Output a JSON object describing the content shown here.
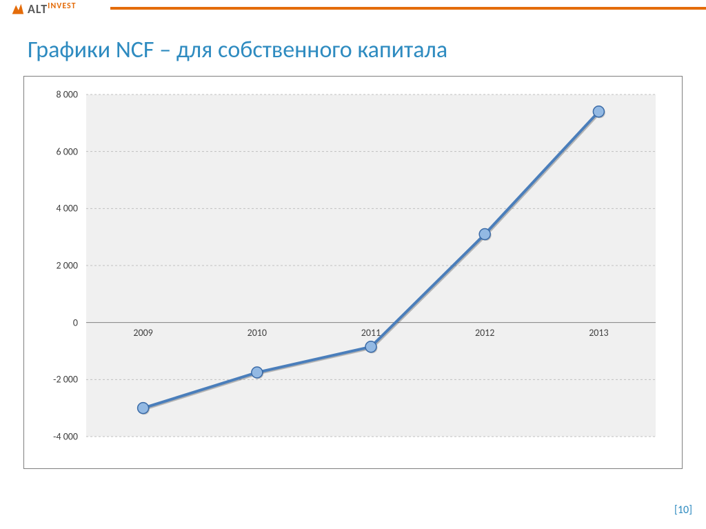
{
  "brand": {
    "name_main": "ALT",
    "name_sub": "INVEST",
    "accent_color": "#e46c0a",
    "text_color": "#5a5a5a",
    "bar_color": "#e46c0a"
  },
  "title": {
    "text": "Графики NCF – для собственного капитала",
    "color": "#2e8bc0",
    "fontsize": 34
  },
  "page_number": {
    "text": "[10]",
    "color": "#2e8bc0",
    "fontsize": 16
  },
  "chart": {
    "type": "line",
    "plot_background": "#f0f0f0",
    "outer_border_color": "#7f7f7f",
    "grid_color": "#bfbfbf",
    "axis_color": "#808080",
    "tick_font_color": "#404040",
    "tick_fontsize": 14,
    "y": {
      "min": -4000,
      "max": 8000,
      "step": 2000,
      "ticks": [
        {
          "v": 8000,
          "label": "8 000"
        },
        {
          "v": 6000,
          "label": "6 000"
        },
        {
          "v": 4000,
          "label": "4 000"
        },
        {
          "v": 2000,
          "label": "2 000"
        },
        {
          "v": 0,
          "label": "0"
        },
        {
          "v": -2000,
          "label": "-2 000"
        },
        {
          "v": -4000,
          "label": "-4 000"
        }
      ]
    },
    "x": {
      "categories": [
        "2009",
        "2010",
        "2011",
        "2012",
        "2013"
      ]
    },
    "series": {
      "name": "NCF",
      "values": [
        -3000,
        -1750,
        -850,
        3100,
        7400
      ],
      "line_color": "#4a7ebb",
      "line_width": 4,
      "marker_fill": "#93b9e3",
      "marker_stroke": "#3a6aa6",
      "marker_radius": 8
    }
  }
}
